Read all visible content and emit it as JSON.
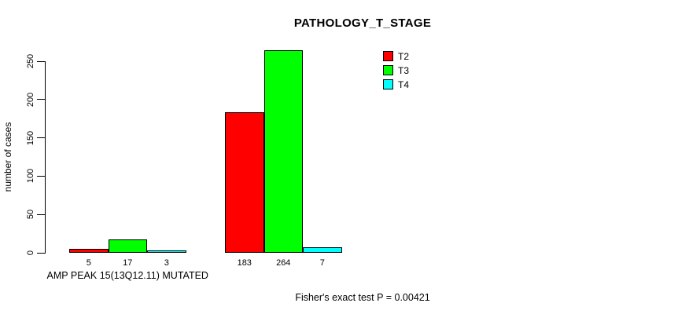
{
  "chart_data": {
    "type": "bar",
    "title": "PATHOLOGY_T_STAGE",
    "ylabel": "number of cases",
    "xlabel": "",
    "ylim": [
      0,
      250
    ],
    "yticks": [
      0,
      50,
      100,
      150,
      200,
      250
    ],
    "grid": false,
    "legend_position": "top-right",
    "bar_border_color": "#000000",
    "series": [
      {
        "name": "T2",
        "color": "#FF0000"
      },
      {
        "name": "T3",
        "color": "#00FF00"
      },
      {
        "name": "T4",
        "color": "#00FFFF"
      }
    ],
    "groups": [
      {
        "label": "AMP PEAK 15(13Q12.11) MUTATED",
        "values": [
          5,
          17,
          3
        ]
      },
      {
        "label": "",
        "values": [
          183,
          264,
          7
        ]
      }
    ],
    "annotation": "Fisher's exact test P = 0.00421"
  }
}
